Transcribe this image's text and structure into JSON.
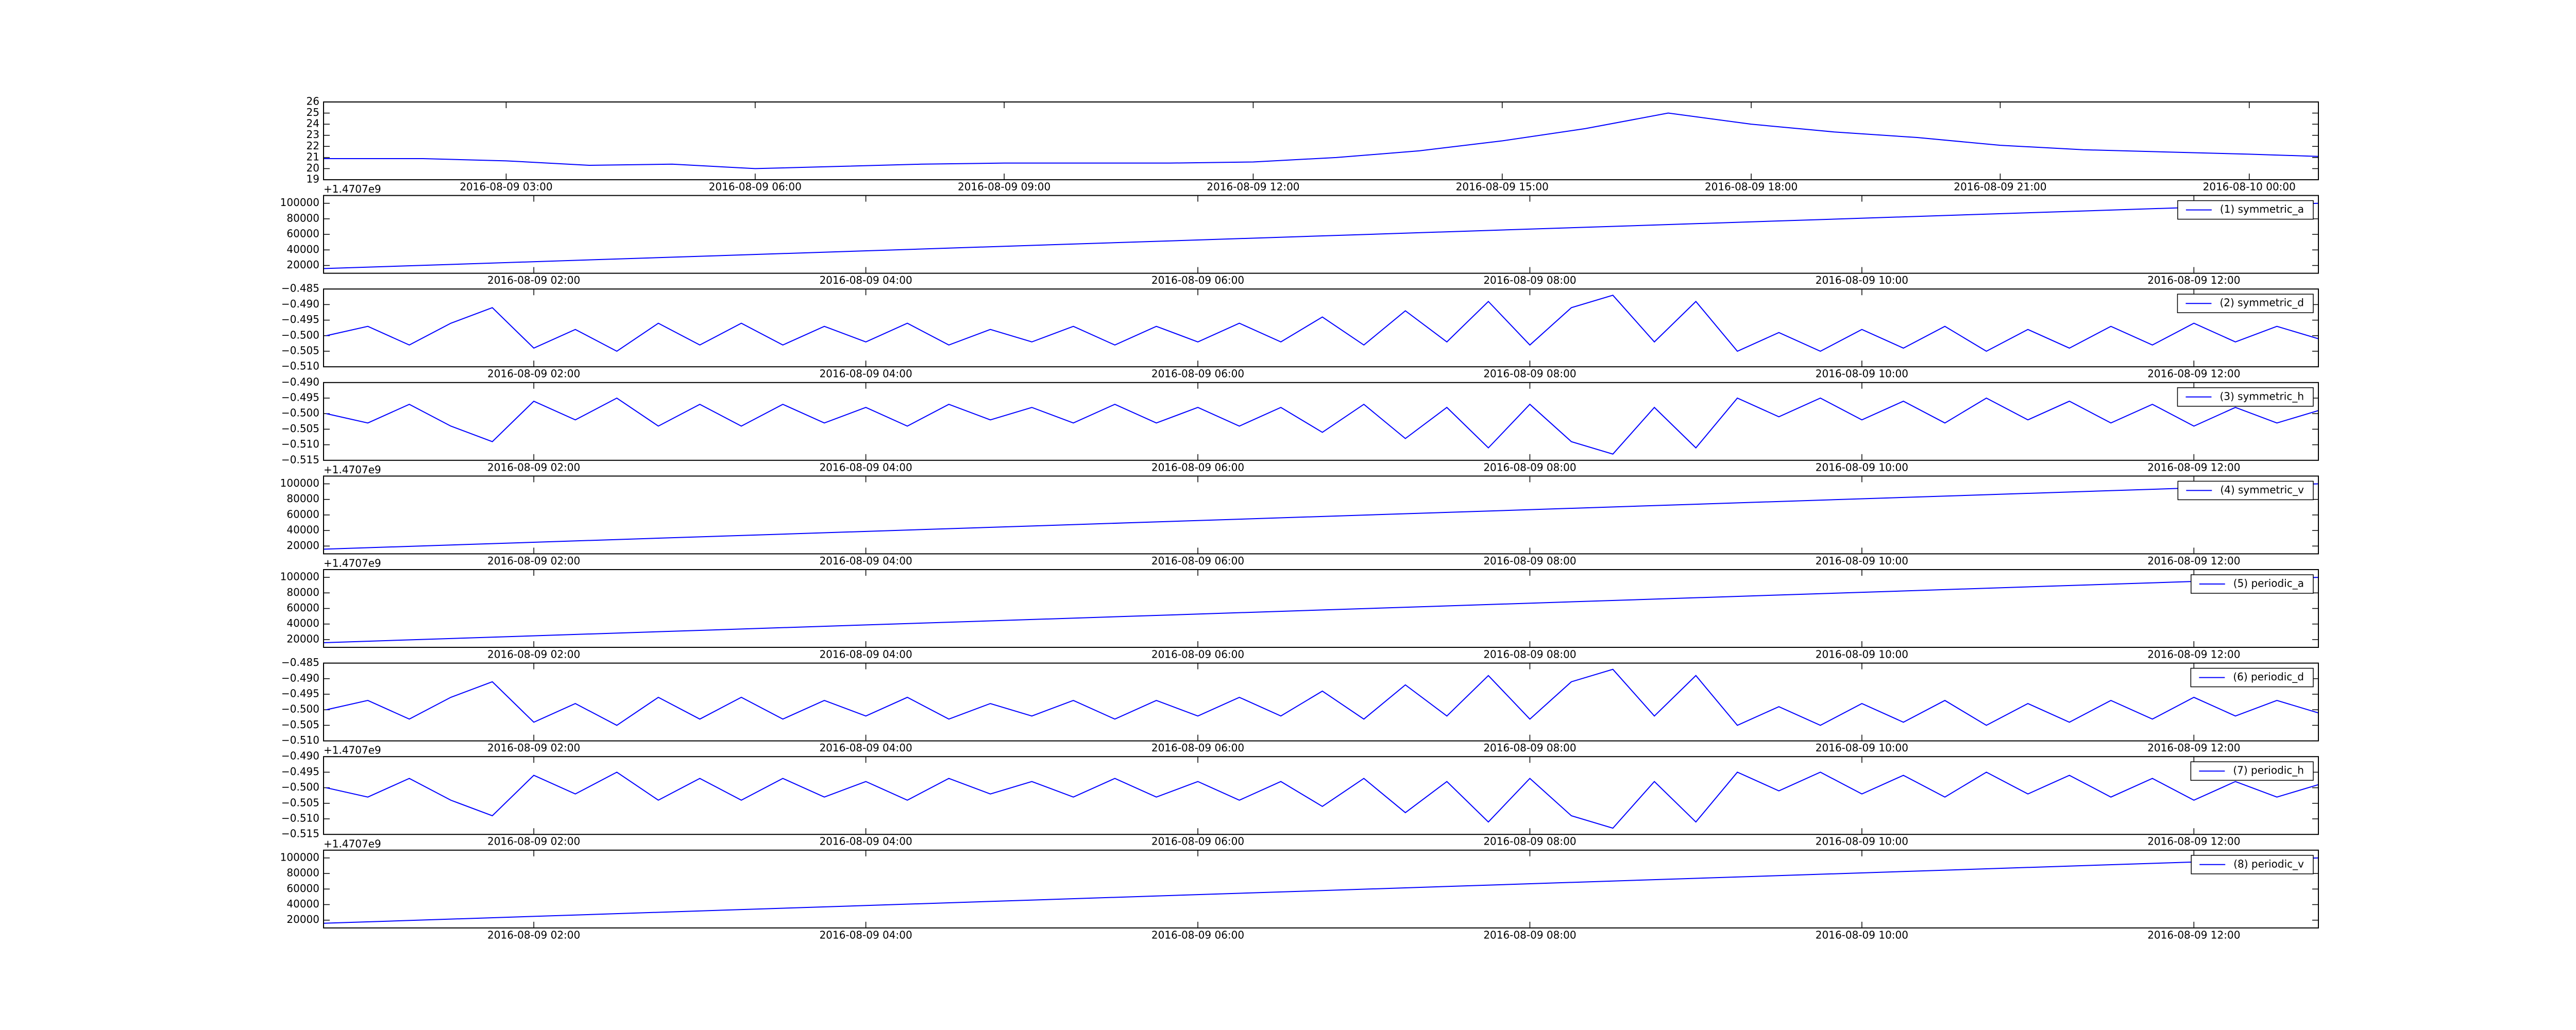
{
  "chart_data": [
    {
      "type": "line",
      "x": [
        "2016-08-09 00:48",
        "2016-08-09 01:00",
        "2016-08-09 02:00",
        "2016-08-09 03:00",
        "2016-08-09 04:00",
        "2016-08-09 05:00",
        "2016-08-09 06:00",
        "2016-08-09 07:00",
        "2016-08-09 08:00",
        "2016-08-09 09:00",
        "2016-08-09 10:00",
        "2016-08-09 11:00",
        "2016-08-09 12:00",
        "2016-08-09 13:00",
        "2016-08-09 14:00",
        "2016-08-09 15:00",
        "2016-08-09 16:00",
        "2016-08-09 17:00",
        "2016-08-09 18:00",
        "2016-08-09 19:00",
        "2016-08-09 20:00",
        "2016-08-09 21:00",
        "2016-08-09 22:00",
        "2016-08-09 23:00",
        "2016-08-10 00:00",
        "2016-08-10 00:50"
      ],
      "values": [
        20.9,
        20.9,
        20.9,
        20.7,
        20.3,
        20.4,
        20.0,
        20.2,
        20.4,
        20.5,
        20.5,
        20.5,
        20.6,
        21.0,
        21.6,
        22.5,
        23.6,
        25.0,
        24.0,
        23.3,
        22.8,
        22.1,
        21.7,
        21.5,
        21.3,
        21.1
      ],
      "color": "#0000ff",
      "xlim": [
        "2016-08-09 00:48",
        "2016-08-10 00:50"
      ],
      "xticks": [
        "2016-08-09 03:00",
        "2016-08-09 06:00",
        "2016-08-09 09:00",
        "2016-08-09 12:00",
        "2016-08-09 15:00",
        "2016-08-09 18:00",
        "2016-08-09 21:00",
        "2016-08-10 00:00"
      ],
      "ylim": [
        19,
        26
      ],
      "yticks": [
        19,
        20,
        21,
        22,
        23,
        24,
        25,
        26
      ]
    },
    {
      "type": "line",
      "offset_text": "+1.4707e9",
      "x": [
        "2016-08-09 00:44",
        "2016-08-09 12:45"
      ],
      "series": [
        {
          "name": "(1) symmetric_a",
          "color": "#0000ff",
          "values": [
            16000,
            100000
          ]
        }
      ],
      "xlim": [
        "2016-08-09 00:44",
        "2016-08-09 12:45"
      ],
      "xticks": [
        "2016-08-09 02:00",
        "2016-08-09 04:00",
        "2016-08-09 06:00",
        "2016-08-09 08:00",
        "2016-08-09 10:00",
        "2016-08-09 12:00"
      ],
      "ylim": [
        10000,
        110000
      ],
      "yticks": [
        20000,
        40000,
        60000,
        80000,
        100000
      ],
      "legend": "upper right"
    },
    {
      "type": "line",
      "x": [
        "2016-08-09 00:45",
        "2016-08-09 01:00",
        "2016-08-09 01:15",
        "2016-08-09 01:30",
        "2016-08-09 01:45",
        "2016-08-09 02:00",
        "2016-08-09 02:15",
        "2016-08-09 02:30",
        "2016-08-09 02:45",
        "2016-08-09 03:00",
        "2016-08-09 03:15",
        "2016-08-09 03:30",
        "2016-08-09 03:45",
        "2016-08-09 04:00",
        "2016-08-09 04:15",
        "2016-08-09 04:30",
        "2016-08-09 04:45",
        "2016-08-09 05:00",
        "2016-08-09 05:15",
        "2016-08-09 05:30",
        "2016-08-09 05:45",
        "2016-08-09 06:00",
        "2016-08-09 06:15",
        "2016-08-09 06:30",
        "2016-08-09 06:45",
        "2016-08-09 07:00",
        "2016-08-09 07:15",
        "2016-08-09 07:30",
        "2016-08-09 07:45",
        "2016-08-09 08:00",
        "2016-08-09 08:15",
        "2016-08-09 08:30",
        "2016-08-09 08:45",
        "2016-08-09 09:00",
        "2016-08-09 09:15",
        "2016-08-09 09:30",
        "2016-08-09 09:45",
        "2016-08-09 10:00",
        "2016-08-09 10:15",
        "2016-08-09 10:30",
        "2016-08-09 10:45",
        "2016-08-09 11:00",
        "2016-08-09 11:15",
        "2016-08-09 11:30",
        "2016-08-09 11:45",
        "2016-08-09 12:00",
        "2016-08-09 12:15",
        "2016-08-09 12:30",
        "2016-08-09 12:45"
      ],
      "series": [
        {
          "name": "(2) symmetric_d",
          "color": "#0000ff",
          "values": [
            -0.5,
            -0.497,
            -0.503,
            -0.496,
            -0.491,
            -0.504,
            -0.498,
            -0.505,
            -0.496,
            -0.503,
            -0.496,
            -0.503,
            -0.497,
            -0.502,
            -0.496,
            -0.503,
            -0.498,
            -0.502,
            -0.497,
            -0.503,
            -0.497,
            -0.502,
            -0.496,
            -0.502,
            -0.494,
            -0.503,
            -0.492,
            -0.502,
            -0.489,
            -0.503,
            -0.491,
            -0.487,
            -0.502,
            -0.489,
            -0.505,
            -0.499,
            -0.505,
            -0.498,
            -0.504,
            -0.497,
            -0.505,
            -0.498,
            -0.504,
            -0.497,
            -0.503,
            -0.496,
            -0.502,
            -0.497,
            -0.501
          ]
        }
      ],
      "xlim": [
        "2016-08-09 00:44",
        "2016-08-09 12:45"
      ],
      "xticks": [
        "2016-08-09 02:00",
        "2016-08-09 04:00",
        "2016-08-09 06:00",
        "2016-08-09 08:00",
        "2016-08-09 10:00",
        "2016-08-09 12:00"
      ],
      "ylim": [
        -0.51,
        -0.485
      ],
      "yticks": [
        {
          "value": -0.51,
          "label": "−0.510"
        },
        {
          "value": -0.505,
          "label": "−0.505"
        },
        {
          "value": -0.5,
          "label": "−0.500"
        },
        {
          "value": -0.495,
          "label": "−0.495"
        },
        {
          "value": -0.49,
          "label": "−0.490"
        },
        {
          "value": -0.485,
          "label": "−0.485"
        }
      ],
      "legend": "upper right"
    },
    {
      "type": "line",
      "x": [
        "2016-08-09 00:45",
        "2016-08-09 01:00",
        "2016-08-09 01:15",
        "2016-08-09 01:30",
        "2016-08-09 01:45",
        "2016-08-09 02:00",
        "2016-08-09 02:15",
        "2016-08-09 02:30",
        "2016-08-09 02:45",
        "2016-08-09 03:00",
        "2016-08-09 03:15",
        "2016-08-09 03:30",
        "2016-08-09 03:45",
        "2016-08-09 04:00",
        "2016-08-09 04:15",
        "2016-08-09 04:30",
        "2016-08-09 04:45",
        "2016-08-09 05:00",
        "2016-08-09 05:15",
        "2016-08-09 05:30",
        "2016-08-09 05:45",
        "2016-08-09 06:00",
        "2016-08-09 06:15",
        "2016-08-09 06:30",
        "2016-08-09 06:45",
        "2016-08-09 07:00",
        "2016-08-09 07:15",
        "2016-08-09 07:30",
        "2016-08-09 07:45",
        "2016-08-09 08:00",
        "2016-08-09 08:15",
        "2016-08-09 08:30",
        "2016-08-09 08:45",
        "2016-08-09 09:00",
        "2016-08-09 09:15",
        "2016-08-09 09:30",
        "2016-08-09 09:45",
        "2016-08-09 10:00",
        "2016-08-09 10:15",
        "2016-08-09 10:30",
        "2016-08-09 10:45",
        "2016-08-09 11:00",
        "2016-08-09 11:15",
        "2016-08-09 11:30",
        "2016-08-09 11:45",
        "2016-08-09 12:00",
        "2016-08-09 12:15",
        "2016-08-09 12:30",
        "2016-08-09 12:45"
      ],
      "series": [
        {
          "name": "(3) symmetric_h",
          "color": "#0000ff",
          "values": [
            -0.5,
            -0.503,
            -0.497,
            -0.504,
            -0.509,
            -0.496,
            -0.502,
            -0.495,
            -0.504,
            -0.497,
            -0.504,
            -0.497,
            -0.503,
            -0.498,
            -0.504,
            -0.497,
            -0.502,
            -0.498,
            -0.503,
            -0.497,
            -0.503,
            -0.498,
            -0.504,
            -0.498,
            -0.506,
            -0.497,
            -0.508,
            -0.498,
            -0.511,
            -0.497,
            -0.509,
            -0.513,
            -0.498,
            -0.511,
            -0.495,
            -0.501,
            -0.495,
            -0.502,
            -0.496,
            -0.503,
            -0.495,
            -0.502,
            -0.496,
            -0.503,
            -0.497,
            -0.504,
            -0.498,
            -0.503,
            -0.499
          ]
        }
      ],
      "xlim": [
        "2016-08-09 00:44",
        "2016-08-09 12:45"
      ],
      "xticks": [
        "2016-08-09 02:00",
        "2016-08-09 04:00",
        "2016-08-09 06:00",
        "2016-08-09 08:00",
        "2016-08-09 10:00",
        "2016-08-09 12:00"
      ],
      "ylim": [
        -0.515,
        -0.49
      ],
      "yticks": [
        {
          "value": -0.515,
          "label": "−0.515"
        },
        {
          "value": -0.51,
          "label": "−0.510"
        },
        {
          "value": -0.505,
          "label": "−0.505"
        },
        {
          "value": -0.5,
          "label": "−0.500"
        },
        {
          "value": -0.495,
          "label": "−0.495"
        },
        {
          "value": -0.49,
          "label": "−0.490"
        }
      ],
      "legend": "upper right"
    },
    {
      "type": "line",
      "offset_text": "+1.4707e9",
      "x": [
        "2016-08-09 00:44",
        "2016-08-09 12:45"
      ],
      "series": [
        {
          "name": "(4) symmetric_v",
          "color": "#0000ff",
          "values": [
            16000,
            100000
          ]
        }
      ],
      "xlim": [
        "2016-08-09 00:44",
        "2016-08-09 12:45"
      ],
      "xticks": [
        "2016-08-09 02:00",
        "2016-08-09 04:00",
        "2016-08-09 06:00",
        "2016-08-09 08:00",
        "2016-08-09 10:00",
        "2016-08-09 12:00"
      ],
      "ylim": [
        10000,
        110000
      ],
      "yticks": [
        20000,
        40000,
        60000,
        80000,
        100000
      ],
      "legend": "upper right"
    },
    {
      "type": "line",
      "offset_text": "+1.4707e9",
      "x": [
        "2016-08-09 00:44",
        "2016-08-09 12:45"
      ],
      "series": [
        {
          "name": "(5) periodic_a",
          "color": "#0000ff",
          "values": [
            16000,
            100000
          ]
        }
      ],
      "xlim": [
        "2016-08-09 00:44",
        "2016-08-09 12:45"
      ],
      "xticks": [
        "2016-08-09 02:00",
        "2016-08-09 04:00",
        "2016-08-09 06:00",
        "2016-08-09 08:00",
        "2016-08-09 10:00",
        "2016-08-09 12:00"
      ],
      "ylim": [
        10000,
        110000
      ],
      "yticks": [
        20000,
        40000,
        60000,
        80000,
        100000
      ],
      "legend": "upper right"
    },
    {
      "type": "line",
      "x": [
        "2016-08-09 00:45",
        "2016-08-09 01:00",
        "2016-08-09 01:15",
        "2016-08-09 01:30",
        "2016-08-09 01:45",
        "2016-08-09 02:00",
        "2016-08-09 02:15",
        "2016-08-09 02:30",
        "2016-08-09 02:45",
        "2016-08-09 03:00",
        "2016-08-09 03:15",
        "2016-08-09 03:30",
        "2016-08-09 03:45",
        "2016-08-09 04:00",
        "2016-08-09 04:15",
        "2016-08-09 04:30",
        "2016-08-09 04:45",
        "2016-08-09 05:00",
        "2016-08-09 05:15",
        "2016-08-09 05:30",
        "2016-08-09 05:45",
        "2016-08-09 06:00",
        "2016-08-09 06:15",
        "2016-08-09 06:30",
        "2016-08-09 06:45",
        "2016-08-09 07:00",
        "2016-08-09 07:15",
        "2016-08-09 07:30",
        "2016-08-09 07:45",
        "2016-08-09 08:00",
        "2016-08-09 08:15",
        "2016-08-09 08:30",
        "2016-08-09 08:45",
        "2016-08-09 09:00",
        "2016-08-09 09:15",
        "2016-08-09 09:30",
        "2016-08-09 09:45",
        "2016-08-09 10:00",
        "2016-08-09 10:15",
        "2016-08-09 10:30",
        "2016-08-09 10:45",
        "2016-08-09 11:00",
        "2016-08-09 11:15",
        "2016-08-09 11:30",
        "2016-08-09 11:45",
        "2016-08-09 12:00",
        "2016-08-09 12:15",
        "2016-08-09 12:30",
        "2016-08-09 12:45"
      ],
      "series": [
        {
          "name": "(6) periodic_d",
          "color": "#0000ff",
          "values": [
            -0.5,
            -0.497,
            -0.503,
            -0.496,
            -0.491,
            -0.504,
            -0.498,
            -0.505,
            -0.496,
            -0.503,
            -0.496,
            -0.503,
            -0.497,
            -0.502,
            -0.496,
            -0.503,
            -0.498,
            -0.502,
            -0.497,
            -0.503,
            -0.497,
            -0.502,
            -0.496,
            -0.502,
            -0.494,
            -0.503,
            -0.492,
            -0.502,
            -0.489,
            -0.503,
            -0.491,
            -0.487,
            -0.502,
            -0.489,
            -0.505,
            -0.499,
            -0.505,
            -0.498,
            -0.504,
            -0.497,
            -0.505,
            -0.498,
            -0.504,
            -0.497,
            -0.503,
            -0.496,
            -0.502,
            -0.497,
            -0.501
          ]
        }
      ],
      "xlim": [
        "2016-08-09 00:44",
        "2016-08-09 12:45"
      ],
      "xticks": [
        "2016-08-09 02:00",
        "2016-08-09 04:00",
        "2016-08-09 06:00",
        "2016-08-09 08:00",
        "2016-08-09 10:00",
        "2016-08-09 12:00"
      ],
      "ylim": [
        -0.51,
        -0.485
      ],
      "yticks": [
        {
          "value": -0.51,
          "label": "−0.510"
        },
        {
          "value": -0.505,
          "label": "−0.505"
        },
        {
          "value": -0.5,
          "label": "−0.500"
        },
        {
          "value": -0.495,
          "label": "−0.495"
        },
        {
          "value": -0.49,
          "label": "−0.490"
        },
        {
          "value": -0.485,
          "label": "−0.485"
        }
      ],
      "legend": "upper right"
    },
    {
      "type": "line",
      "offset_text": "+1.4707e9",
      "x": [
        "2016-08-09 00:45",
        "2016-08-09 01:00",
        "2016-08-09 01:15",
        "2016-08-09 01:30",
        "2016-08-09 01:45",
        "2016-08-09 02:00",
        "2016-08-09 02:15",
        "2016-08-09 02:30",
        "2016-08-09 02:45",
        "2016-08-09 03:00",
        "2016-08-09 03:15",
        "2016-08-09 03:30",
        "2016-08-09 03:45",
        "2016-08-09 04:00",
        "2016-08-09 04:15",
        "2016-08-09 04:30",
        "2016-08-09 04:45",
        "2016-08-09 05:00",
        "2016-08-09 05:15",
        "2016-08-09 05:30",
        "2016-08-09 05:45",
        "2016-08-09 06:00",
        "2016-08-09 06:15",
        "2016-08-09 06:30",
        "2016-08-09 06:45",
        "2016-08-09 07:00",
        "2016-08-09 07:15",
        "2016-08-09 07:30",
        "2016-08-09 07:45",
        "2016-08-09 08:00",
        "2016-08-09 08:15",
        "2016-08-09 08:30",
        "2016-08-09 08:45",
        "2016-08-09 09:00",
        "2016-08-09 09:15",
        "2016-08-09 09:30",
        "2016-08-09 09:45",
        "2016-08-09 10:00",
        "2016-08-09 10:15",
        "2016-08-09 10:30",
        "2016-08-09 10:45",
        "2016-08-09 11:00",
        "2016-08-09 11:15",
        "2016-08-09 11:30",
        "2016-08-09 11:45",
        "2016-08-09 12:00",
        "2016-08-09 12:15",
        "2016-08-09 12:30",
        "2016-08-09 12:45"
      ],
      "series": [
        {
          "name": "(7) periodic_h",
          "color": "#0000ff",
          "values": [
            -0.5,
            -0.503,
            -0.497,
            -0.504,
            -0.509,
            -0.496,
            -0.502,
            -0.495,
            -0.504,
            -0.497,
            -0.504,
            -0.497,
            -0.503,
            -0.498,
            -0.504,
            -0.497,
            -0.502,
            -0.498,
            -0.503,
            -0.497,
            -0.503,
            -0.498,
            -0.504,
            -0.498,
            -0.506,
            -0.497,
            -0.508,
            -0.498,
            -0.511,
            -0.497,
            -0.509,
            -0.513,
            -0.498,
            -0.511,
            -0.495,
            -0.501,
            -0.495,
            -0.502,
            -0.496,
            -0.503,
            -0.495,
            -0.502,
            -0.496,
            -0.503,
            -0.497,
            -0.504,
            -0.498,
            -0.503,
            -0.499
          ]
        }
      ],
      "xlim": [
        "2016-08-09 00:44",
        "2016-08-09 12:45"
      ],
      "xticks": [
        "2016-08-09 02:00",
        "2016-08-09 04:00",
        "2016-08-09 06:00",
        "2016-08-09 08:00",
        "2016-08-09 10:00",
        "2016-08-09 12:00"
      ],
      "ylim": [
        -0.515,
        -0.49
      ],
      "yticks": [
        {
          "value": -0.515,
          "label": "−0.515"
        },
        {
          "value": -0.51,
          "label": "−0.510"
        },
        {
          "value": -0.505,
          "label": "−0.505"
        },
        {
          "value": -0.5,
          "label": "−0.500"
        },
        {
          "value": -0.495,
          "label": "−0.495"
        },
        {
          "value": -0.49,
          "label": "−0.490"
        }
      ],
      "legend": "upper right"
    },
    {
      "type": "line",
      "offset_text": "+1.4707e9",
      "x": [
        "2016-08-09 00:44",
        "2016-08-09 12:45"
      ],
      "series": [
        {
          "name": "(8) periodic_v",
          "color": "#0000ff",
          "values": [
            16000,
            100000
          ]
        }
      ],
      "xlim": [
        "2016-08-09 00:44",
        "2016-08-09 12:45"
      ],
      "xticks": [
        "2016-08-09 02:00",
        "2016-08-09 04:00",
        "2016-08-09 06:00",
        "2016-08-09 08:00",
        "2016-08-09 10:00",
        "2016-08-09 12:00"
      ],
      "ylim": [
        10000,
        110000
      ],
      "yticks": [
        20000,
        40000,
        60000,
        80000,
        100000
      ],
      "legend": "upper right"
    }
  ]
}
